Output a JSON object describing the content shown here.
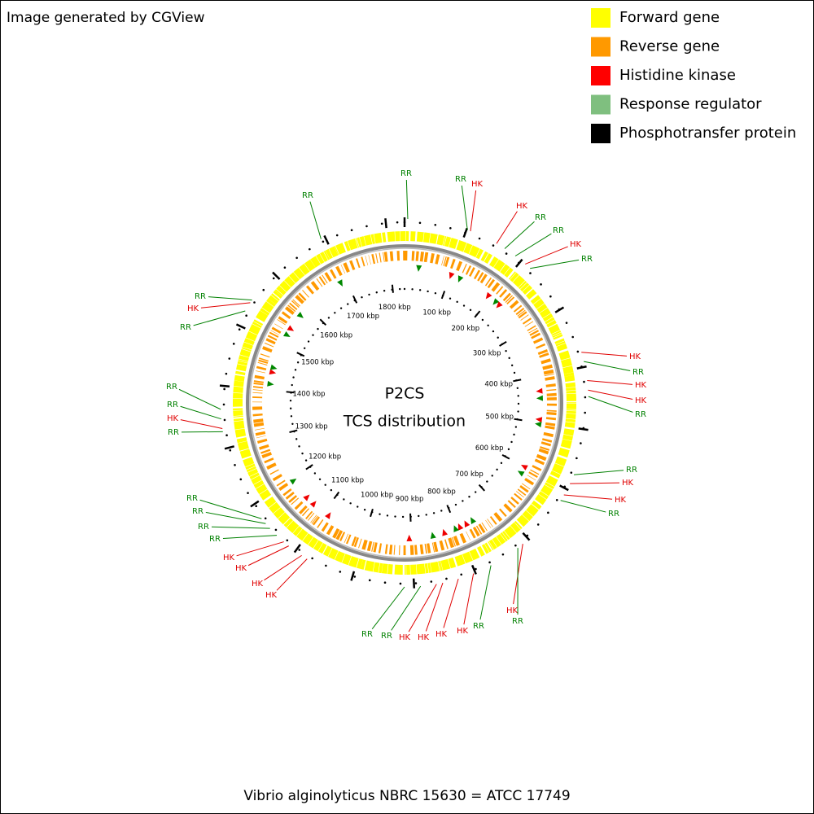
{
  "header": {
    "credit": "Image generated by CGView"
  },
  "legend": [
    {
      "label": "Forward gene",
      "color": "#ffff00"
    },
    {
      "label": "Reverse gene",
      "color": "#ff9900"
    },
    {
      "label": "Histidine kinase",
      "color": "#ff0000"
    },
    {
      "label": "Response regulator",
      "color": "#7fbf7f"
    },
    {
      "label": "Phosphotransfer protein",
      "color": "#000000"
    }
  ],
  "center": {
    "title": "P2CS",
    "subtitle": "TCS distribution"
  },
  "ruler_labels": [
    "100 kbp",
    "200 kbp",
    "300 kbp",
    "400 kbp",
    "500 kbp",
    "600 kbp",
    "700 kbp",
    "800 kbp",
    "900 kbp",
    "1000 kbp",
    "1100 kbp",
    "1200 kbp",
    "1300 kbp",
    "1400 kbp",
    "1500 kbp",
    "1600 kbp",
    "1700 kbp",
    "1800 kbp"
  ],
  "feature_labels": [
    {
      "text": "RR",
      "color": "#008000"
    },
    {
      "text": "RR",
      "color": "#008000"
    },
    {
      "text": "HK",
      "color": "#e00000"
    },
    {
      "text": "HK",
      "color": "#e00000"
    },
    {
      "text": "RR",
      "color": "#008000"
    },
    {
      "text": "RR",
      "color": "#008000"
    },
    {
      "text": "HK",
      "color": "#e00000"
    },
    {
      "text": "RR",
      "color": "#008000"
    },
    {
      "text": "HK",
      "color": "#e00000"
    },
    {
      "text": "RR",
      "color": "#008000"
    },
    {
      "text": "HK",
      "color": "#e00000"
    },
    {
      "text": "HK",
      "color": "#e00000"
    },
    {
      "text": "RR",
      "color": "#008000"
    },
    {
      "text": "RR",
      "color": "#008000"
    },
    {
      "text": "HK",
      "color": "#e00000"
    },
    {
      "text": "HK",
      "color": "#e00000"
    },
    {
      "text": "RR",
      "color": "#008000"
    },
    {
      "text": "HK",
      "color": "#e00000"
    },
    {
      "text": "RR",
      "color": "#008000"
    },
    {
      "text": "RR",
      "color": "#008000"
    },
    {
      "text": "HK",
      "color": "#e00000"
    },
    {
      "text": "HK",
      "color": "#e00000"
    },
    {
      "text": "HK",
      "color": "#e00000"
    },
    {
      "text": "HK",
      "color": "#e00000"
    },
    {
      "text": "RR",
      "color": "#008000"
    },
    {
      "text": "RR",
      "color": "#008000"
    },
    {
      "text": "HK",
      "color": "#e00000"
    },
    {
      "text": "HK",
      "color": "#e00000"
    },
    {
      "text": "HK",
      "color": "#e00000"
    },
    {
      "text": "HK",
      "color": "#e00000"
    },
    {
      "text": "RR",
      "color": "#008000"
    },
    {
      "text": "RR",
      "color": "#008000"
    },
    {
      "text": "RR",
      "color": "#008000"
    },
    {
      "text": "RR",
      "color": "#008000"
    },
    {
      "text": "RR",
      "color": "#008000"
    },
    {
      "text": "HK",
      "color": "#e00000"
    },
    {
      "text": "RR",
      "color": "#008000"
    },
    {
      "text": "RR",
      "color": "#008000"
    },
    {
      "text": "RR",
      "color": "#008000"
    },
    {
      "text": "HK",
      "color": "#e00000"
    },
    {
      "text": "RR",
      "color": "#008000"
    },
    {
      "text": "RR",
      "color": "#008000"
    }
  ],
  "footer": {
    "organism": "Vibrio alginolyticus NBRC 15630 = ATCC 17749"
  }
}
